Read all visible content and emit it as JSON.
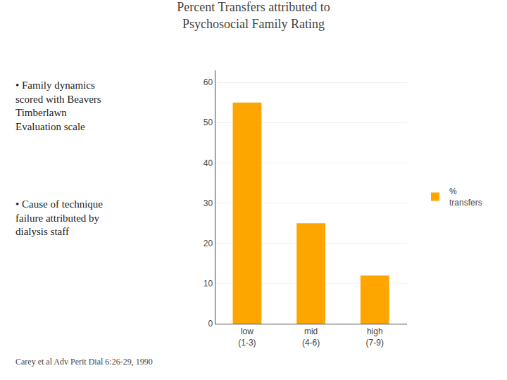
{
  "chart_data": {
    "type": "bar",
    "title": "Percent Transfers attributed to",
    "subtitle": "Psychosocial Family Rating",
    "categories": [
      "low\n(1-3)",
      "mid\n(4-6)",
      "high\n(7-9)"
    ],
    "series": [
      {
        "name": "%\ntransfers",
        "color": "#FFA500",
        "values": [
          55,
          25,
          12
        ]
      }
    ],
    "ylim": [
      0,
      63
    ],
    "yticks": [
      0,
      10,
      20,
      30,
      40,
      50,
      60
    ],
    "grid": true,
    "legend": "right",
    "annotations": [
      "• Family dynamics\nscored with Beavers\nTimberlawn\nEvaluation scale",
      "• Cause of technique\nfailure attributed by\ndialysis staff",
      "Carey et al Adv Perit Dial 6:26-29, 1990"
    ]
  }
}
